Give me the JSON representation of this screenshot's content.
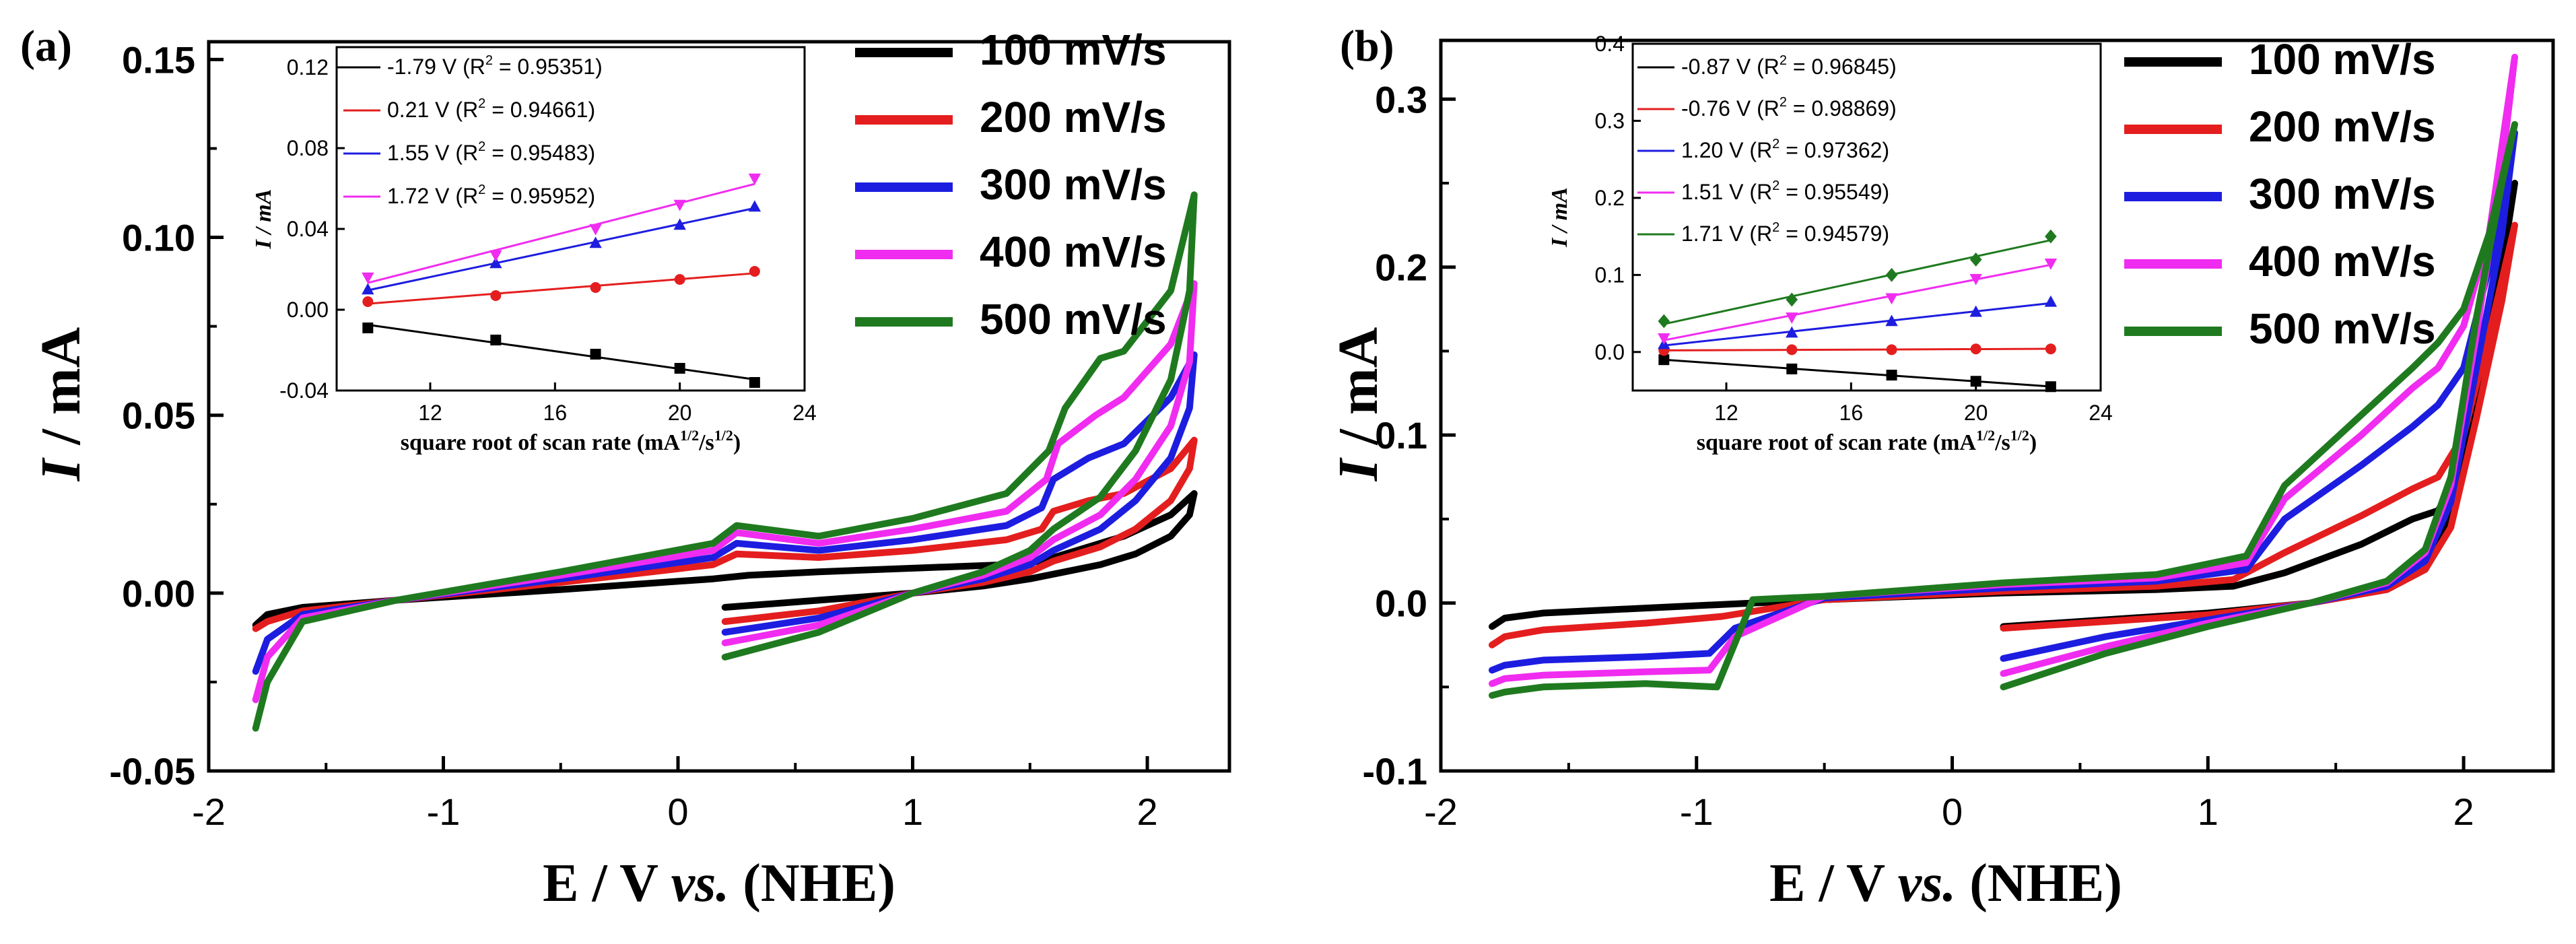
{
  "figure": {
    "description_free": true
  },
  "colors": {
    "s100": "#000000",
    "s200": "#e41e1e",
    "s300": "#1d1de0",
    "s400": "#f02cf0",
    "s500": "#1f7a1f"
  },
  "panels": [
    {
      "id": "a",
      "label": "(a)",
      "ylabel_symbol": "I",
      "ylabel_unit": " / mA",
      "xlabel_main": "E / V ",
      "xlabel_vs": "vs.",
      "xlabel_tail": " (NHE)"
    },
    {
      "id": "b",
      "label": "(b)",
      "ylabel_symbol": "I",
      "ylabel_unit": " / mA",
      "xlabel_main": "E / V ",
      "xlabel_vs": "vs.",
      "xlabel_tail": " (NHE)"
    }
  ],
  "chart_data": [
    {
      "type": "line",
      "panel": "a",
      "title": "",
      "xlabel": "E / V vs. (NHE)",
      "ylabel": "I / mA",
      "xlim": [
        -2,
        2.35
      ],
      "ylim": [
        -0.05,
        0.155
      ],
      "xticks": [
        -2,
        -1,
        0,
        1,
        2
      ],
      "xtick_labels": [
        "-2",
        "-1",
        "0",
        "1",
        "2"
      ],
      "yticks": [
        -0.05,
        0.0,
        0.05,
        0.1,
        0.15
      ],
      "ytick_labels": [
        "-0.05",
        "0.00",
        "0.05",
        "0.10",
        "0.15"
      ],
      "legend": [
        "100 mV/s",
        "200 mV/s",
        "300 mV/s",
        "400 mV/s",
        "500 mV/s"
      ],
      "series": [
        {
          "name": "100 mV/s",
          "color": "#000000",
          "forward_x": [
            0.2,
            0.6,
            1.0,
            1.3,
            1.5,
            1.65,
            1.8,
            1.95,
            2.1,
            2.18,
            2.2
          ],
          "forward_y": [
            -0.004,
            -0.002,
            0.0,
            0.002,
            0.004,
            0.006,
            0.008,
            0.011,
            0.016,
            0.022,
            0.028
          ],
          "reverse_x": [
            2.2,
            2.1,
            1.9,
            1.7,
            1.55,
            1.4,
            1.0,
            0.6,
            0.3,
            0.15,
            -0.5,
            -1.2,
            -1.6,
            -1.75,
            -1.8
          ],
          "reverse_y": [
            0.028,
            0.022,
            0.016,
            0.012,
            0.009,
            0.008,
            0.007,
            0.006,
            0.005,
            0.004,
            0.001,
            -0.002,
            -0.004,
            -0.006,
            -0.009
          ]
        },
        {
          "name": "200 mV/s",
          "color": "#e41e1e",
          "forward_x": [
            0.2,
            0.6,
            1.0,
            1.3,
            1.5,
            1.6,
            1.8,
            1.95,
            2.1,
            2.18,
            2.2
          ],
          "forward_y": [
            -0.008,
            -0.005,
            0.0,
            0.003,
            0.006,
            0.009,
            0.013,
            0.018,
            0.026,
            0.035,
            0.043
          ],
          "reverse_x": [
            2.2,
            2.1,
            1.9,
            1.75,
            1.6,
            1.55,
            1.4,
            1.0,
            0.6,
            0.25,
            0.15,
            -0.5,
            -1.2,
            -1.6,
            -1.75,
            -1.8
          ],
          "reverse_y": [
            0.043,
            0.035,
            0.028,
            0.026,
            0.023,
            0.018,
            0.015,
            0.012,
            0.01,
            0.011,
            0.008,
            0.003,
            -0.002,
            -0.005,
            -0.008,
            -0.01
          ]
        },
        {
          "name": "300 mV/s",
          "color": "#1d1de0",
          "forward_x": [
            0.2,
            0.6,
            1.0,
            1.3,
            1.5,
            1.6,
            1.8,
            1.95,
            2.1,
            2.18,
            2.2
          ],
          "forward_y": [
            -0.011,
            -0.007,
            0.0,
            0.004,
            0.008,
            0.012,
            0.018,
            0.026,
            0.038,
            0.052,
            0.067
          ],
          "reverse_x": [
            2.2,
            2.1,
            1.9,
            1.75,
            1.6,
            1.55,
            1.4,
            1.0,
            0.6,
            0.25,
            0.15,
            -0.5,
            -1.2,
            -1.6,
            -1.75,
            -1.8
          ],
          "reverse_y": [
            0.067,
            0.055,
            0.042,
            0.038,
            0.032,
            0.024,
            0.019,
            0.015,
            0.012,
            0.014,
            0.01,
            0.004,
            -0.002,
            -0.006,
            -0.013,
            -0.022
          ]
        },
        {
          "name": "400 mV/s",
          "color": "#f02cf0",
          "forward_x": [
            0.2,
            0.6,
            1.0,
            1.3,
            1.5,
            1.6,
            1.8,
            1.95,
            2.1,
            2.18,
            2.2
          ],
          "forward_y": [
            -0.014,
            -0.009,
            0.0,
            0.005,
            0.01,
            0.015,
            0.022,
            0.032,
            0.047,
            0.065,
            0.087
          ],
          "reverse_x": [
            2.2,
            2.1,
            1.9,
            1.78,
            1.62,
            1.57,
            1.4,
            1.0,
            0.6,
            0.25,
            0.15,
            -0.5,
            -1.2,
            -1.6,
            -1.75,
            -1.8
          ],
          "reverse_y": [
            0.087,
            0.07,
            0.055,
            0.05,
            0.042,
            0.032,
            0.023,
            0.018,
            0.014,
            0.017,
            0.012,
            0.005,
            -0.002,
            -0.007,
            -0.018,
            -0.03
          ]
        },
        {
          "name": "500 mV/s",
          "color": "#1f7a1f",
          "forward_x": [
            0.2,
            0.6,
            1.0,
            1.3,
            1.5,
            1.6,
            1.8,
            1.95,
            2.1,
            2.18,
            2.2
          ],
          "forward_y": [
            -0.018,
            -0.011,
            0.0,
            0.006,
            0.012,
            0.018,
            0.027,
            0.04,
            0.06,
            0.085,
            0.112
          ],
          "reverse_x": [
            2.2,
            2.1,
            1.9,
            1.8,
            1.65,
            1.58,
            1.4,
            1.0,
            0.6,
            0.25,
            0.15,
            -0.5,
            -1.2,
            -1.6,
            -1.75,
            -1.8
          ],
          "reverse_y": [
            0.112,
            0.085,
            0.068,
            0.066,
            0.052,
            0.04,
            0.028,
            0.021,
            0.016,
            0.019,
            0.014,
            0.006,
            -0.002,
            -0.008,
            -0.025,
            -0.038
          ]
        }
      ],
      "inset": {
        "xlabel": "square root of scan rate (mA",
        "xlabel_sup1": "1/2",
        "xlabel_mid": "/s",
        "xlabel_sup2": "1/2",
        "xlabel_end": ")",
        "ylabel": "I / mA",
        "xlim": [
          9,
          24
        ],
        "ylim": [
          -0.04,
          0.13
        ],
        "xticks": [
          12,
          16,
          20,
          24
        ],
        "xtick_labels": [
          "12",
          "16",
          "20",
          "24"
        ],
        "yticks": [
          -0.04,
          0.0,
          0.04,
          0.08,
          0.12
        ],
        "ytick_labels": [
          "-0.04",
          "0.00",
          "0.04",
          "0.08",
          "0.12"
        ],
        "x": [
          10,
          14.1,
          17.3,
          20,
          22.4
        ],
        "series": [
          {
            "label": "-1.79 V (R",
            "r2": "= 0.95351)",
            "color": "#000000",
            "marker": "square",
            "values": [
              -0.009,
              -0.015,
              -0.022,
              -0.029,
              -0.036
            ]
          },
          {
            "label": "0.21 V (R",
            "r2": "= 0.94661)",
            "color": "#e41e1e",
            "marker": "circle",
            "values": [
              0.004,
              0.007,
              0.011,
              0.015,
              0.019
            ]
          },
          {
            "label": "1.55 V (R",
            "r2": "= 0.95483)",
            "color": "#1d1de0",
            "marker": "triangle-up",
            "values": [
              0.01,
              0.023,
              0.033,
              0.042,
              0.051
            ]
          },
          {
            "label": "1.72 V (R",
            "r2": "= 0.95952)",
            "color": "#f02cf0",
            "marker": "triangle-down",
            "values": [
              0.016,
              0.027,
              0.04,
              0.052,
              0.065
            ]
          }
        ]
      }
    },
    {
      "type": "line",
      "panel": "b",
      "title": "",
      "xlabel": "E / V vs. (NHE)",
      "ylabel": "I / mA",
      "xlim": [
        -2,
        2.35
      ],
      "ylim": [
        -0.1,
        0.335
      ],
      "xticks": [
        -2,
        -1,
        0,
        1,
        2
      ],
      "xtick_labels": [
        "-2",
        "-1",
        "0",
        "1",
        "2"
      ],
      "yticks": [
        -0.1,
        0.0,
        0.1,
        0.2,
        0.3
      ],
      "ytick_labels": [
        "-0.1",
        "0.0",
        "0.1",
        "0.2",
        "0.3"
      ],
      "legend": [
        "100 mV/s",
        "200 mV/s",
        "300 mV/s",
        "400 mV/s",
        "500 mV/s"
      ],
      "series": [
        {
          "name": "100 mV/s",
          "color": "#000000",
          "forward_x": [
            0.2,
            0.6,
            1.0,
            1.4,
            1.7,
            1.85,
            1.95,
            2.05,
            2.15,
            2.2
          ],
          "forward_y": [
            -0.014,
            -0.01,
            -0.006,
            0.0,
            0.008,
            0.02,
            0.05,
            0.12,
            0.2,
            0.25
          ],
          "reverse_x": [
            2.2,
            2.1,
            2.0,
            1.9,
            1.8,
            1.6,
            1.3,
            1.1,
            0.8,
            0.2,
            -0.5,
            -1.2,
            -1.6,
            -1.75,
            -1.8
          ],
          "reverse_y": [
            0.25,
            0.16,
            0.08,
            0.055,
            0.05,
            0.035,
            0.018,
            0.01,
            0.008,
            0.006,
            0.002,
            -0.003,
            -0.006,
            -0.009,
            -0.014
          ]
        },
        {
          "name": "200 mV/s",
          "color": "#e41e1e",
          "forward_x": [
            0.2,
            0.6,
            1.0,
            1.4,
            1.7,
            1.85,
            1.95,
            2.05,
            2.15,
            2.2
          ],
          "forward_y": [
            -0.015,
            -0.011,
            -0.007,
            0.0,
            0.008,
            0.02,
            0.045,
            0.11,
            0.18,
            0.225
          ],
          "reverse_x": [
            2.2,
            2.1,
            2.0,
            1.9,
            1.8,
            1.6,
            1.3,
            1.1,
            0.8,
            0.2,
            -0.5,
            -0.9,
            -1.2,
            -1.6,
            -1.75,
            -1.8
          ],
          "reverse_y": [
            0.225,
            0.16,
            0.1,
            0.075,
            0.068,
            0.052,
            0.03,
            0.014,
            0.01,
            0.007,
            0.002,
            -0.008,
            -0.012,
            -0.016,
            -0.02,
            -0.025
          ]
        },
        {
          "name": "300 mV/s",
          "color": "#1d1de0",
          "forward_x": [
            0.2,
            0.6,
            1.0,
            1.4,
            1.7,
            1.85,
            1.95,
            2.05,
            2.15,
            2.2
          ],
          "forward_y": [
            -0.033,
            -0.02,
            -0.01,
            0.0,
            0.01,
            0.025,
            0.06,
            0.14,
            0.22,
            0.28
          ],
          "reverse_x": [
            2.2,
            2.1,
            2.0,
            1.9,
            1.8,
            1.6,
            1.3,
            1.15,
            0.8,
            0.2,
            -0.5,
            -0.85,
            -0.95,
            -1.2,
            -1.6,
            -1.75,
            -1.8
          ],
          "reverse_y": [
            0.28,
            0.2,
            0.14,
            0.118,
            0.105,
            0.082,
            0.05,
            0.02,
            0.013,
            0.009,
            0.003,
            -0.015,
            -0.03,
            -0.032,
            -0.034,
            -0.037,
            -0.04
          ]
        },
        {
          "name": "400 mV/s",
          "color": "#f02cf0",
          "forward_x": [
            0.2,
            0.6,
            1.0,
            1.4,
            1.7,
            1.85,
            1.95,
            2.05,
            2.15,
            2.2
          ],
          "forward_y": [
            -0.042,
            -0.026,
            -0.012,
            0.0,
            0.012,
            0.03,
            0.07,
            0.16,
            0.26,
            0.325
          ],
          "reverse_x": [
            2.2,
            2.1,
            2.0,
            1.9,
            1.8,
            1.6,
            1.3,
            1.15,
            0.8,
            0.2,
            -0.5,
            -0.85,
            -0.95,
            -1.2,
            -1.6,
            -1.75,
            -1.8
          ],
          "reverse_y": [
            0.325,
            0.22,
            0.165,
            0.14,
            0.128,
            0.1,
            0.062,
            0.024,
            0.015,
            0.011,
            0.004,
            -0.02,
            -0.04,
            -0.041,
            -0.043,
            -0.045,
            -0.048
          ]
        },
        {
          "name": "500 mV/s",
          "color": "#1f7a1f",
          "forward_x": [
            0.2,
            0.6,
            1.0,
            1.4,
            1.7,
            1.85,
            1.95,
            2.05,
            2.15,
            2.2
          ],
          "forward_y": [
            -0.05,
            -0.03,
            -0.014,
            0.0,
            0.013,
            0.032,
            0.075,
            0.17,
            0.25,
            0.285
          ],
          "reverse_x": [
            2.2,
            2.1,
            2.0,
            1.9,
            1.8,
            1.6,
            1.3,
            1.15,
            0.8,
            0.2,
            -0.5,
            -0.78,
            -0.92,
            -1.2,
            -1.6,
            -1.75,
            -1.8
          ],
          "reverse_y": [
            0.285,
            0.22,
            0.175,
            0.155,
            0.14,
            0.112,
            0.07,
            0.028,
            0.017,
            0.012,
            0.004,
            0.002,
            -0.05,
            -0.048,
            -0.05,
            -0.053,
            -0.055
          ]
        }
      ],
      "inset": {
        "xlabel": "square root of scan rate (mA",
        "xlabel_sup1": "1/2",
        "xlabel_mid": "/s",
        "xlabel_sup2": "1/2",
        "xlabel_end": ")",
        "ylabel": "I / mA",
        "xlim": [
          9,
          24
        ],
        "ylim": [
          -0.05,
          0.4
        ],
        "xticks": [
          12,
          16,
          20,
          24
        ],
        "xtick_labels": [
          "12",
          "16",
          "20",
          "24"
        ],
        "yticks": [
          0.0,
          0.1,
          0.2,
          0.3,
          0.4
        ],
        "ytick_labels": [
          "0.0",
          "0.1",
          "0.2",
          "0.3",
          "0.4"
        ],
        "x": [
          10,
          14.1,
          17.3,
          20,
          22.4
        ],
        "series": [
          {
            "label": "-0.87 V (R",
            "r2": "= 0.96845)",
            "color": "#000000",
            "marker": "square",
            "values": [
              -0.01,
              -0.022,
              -0.03,
              -0.038,
              -0.045
            ]
          },
          {
            "label": "-0.76 V (R",
            "r2": "= 0.98869)",
            "color": "#e41e1e",
            "marker": "circle",
            "values": [
              0.002,
              0.003,
              0.003,
              0.004,
              0.004
            ]
          },
          {
            "label": "1.20 V (R",
            "r2": "= 0.97362)",
            "color": "#1d1de0",
            "marker": "triangle-up",
            "values": [
              0.01,
              0.025,
              0.04,
              0.052,
              0.065
            ]
          },
          {
            "label": "1.51 V (R",
            "r2": "= 0.95549)",
            "color": "#f02cf0",
            "marker": "triangle-down",
            "values": [
              0.018,
              0.045,
              0.07,
              0.095,
              0.115
            ]
          },
          {
            "label": "1.71 V (R",
            "r2": "= 0.94579)",
            "color": "#1f7a1f",
            "marker": "diamond",
            "values": [
              0.04,
              0.068,
              0.1,
              0.12,
              0.15
            ]
          }
        ]
      }
    }
  ]
}
